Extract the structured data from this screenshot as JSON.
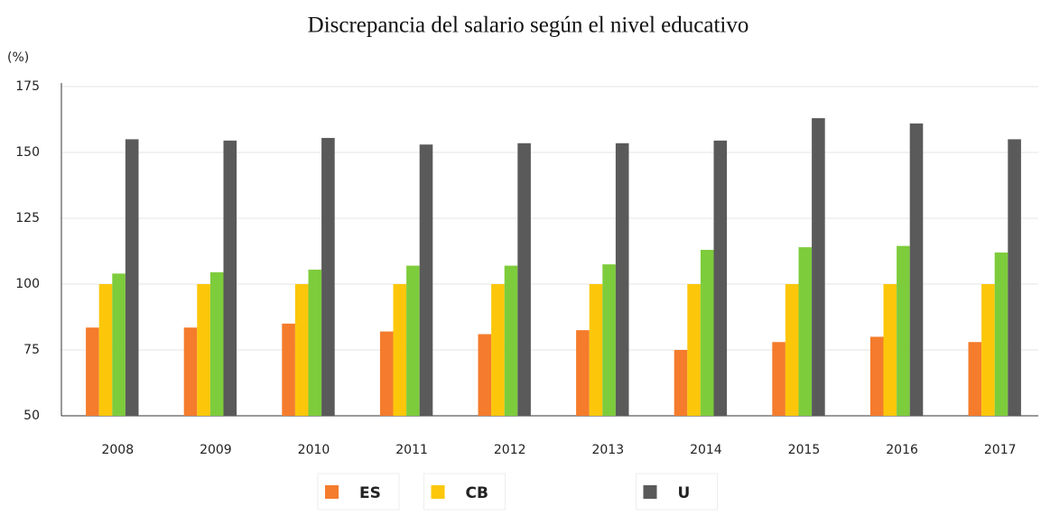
{
  "chart_data": {
    "type": "bar",
    "title": "Discrepancia del salario según el nivel educativo",
    "y_label": "(%)",
    "categories": [
      "2008",
      "2009",
      "2010",
      "2011",
      "2012",
      "2013",
      "2014",
      "2015",
      "2016",
      "2017"
    ],
    "series": [
      {
        "name": "ES",
        "color": "#f47c2c",
        "values": [
          83.5,
          83.5,
          85,
          82,
          81,
          82.5,
          75,
          78,
          80,
          78
        ]
      },
      {
        "name": "CB",
        "color": "#fcc70a",
        "values": [
          100,
          100,
          100,
          100,
          100,
          100,
          100,
          100,
          100,
          100
        ]
      },
      {
        "color": "#7dcc3c",
        "values": [
          104,
          104.5,
          105.5,
          107,
          107,
          107.5,
          113,
          114,
          114.5,
          112
        ]
      },
      {
        "name": "U",
        "color": "#5a5a5a",
        "values": [
          155,
          154.5,
          155.5,
          153,
          153.5,
          153.5,
          154.5,
          163,
          161,
          155
        ]
      }
    ],
    "ylim": [
      50,
      175
    ],
    "yticks": [
      50,
      75,
      100,
      125,
      150,
      175
    ],
    "grid": true
  }
}
